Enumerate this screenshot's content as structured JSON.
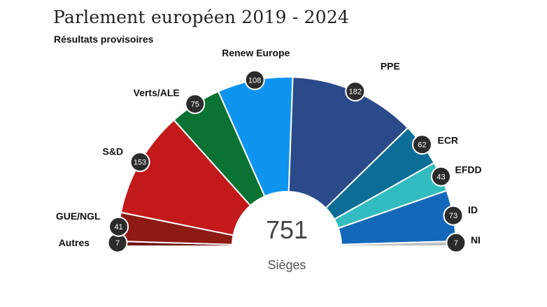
{
  "header": {
    "title": "Parlement européen 2019 - 2024",
    "subtitle": "Résultats provisoires"
  },
  "chart_data": {
    "type": "parliament",
    "title": "Parlement européen 2019 - 2024",
    "subtitle": "Résultats provisoires",
    "total": 751,
    "total_label": "Sièges",
    "series": [
      {
        "name": "Autres",
        "seats": 7,
        "color": "#6e1412"
      },
      {
        "name": "GUE/NGL",
        "seats": 41,
        "color": "#8e1a14"
      },
      {
        "name": "S&D",
        "seats": 153,
        "color": "#c3191b"
      },
      {
        "name": "Verts/ALE",
        "seats": 75,
        "color": "#0a7232"
      },
      {
        "name": "Renew Europe",
        "seats": 108,
        "color": "#0f94f0"
      },
      {
        "name": "PPE",
        "seats": 182,
        "color": "#2a4a8a"
      },
      {
        "name": "ECR",
        "seats": 62,
        "color": "#0c6e96"
      },
      {
        "name": "EFDD",
        "seats": 43,
        "color": "#32bcc0"
      },
      {
        "name": "ID",
        "seats": 73,
        "color": "#1468ba"
      },
      {
        "name": "NI",
        "seats": 7,
        "color": "#c0c0c0"
      }
    ]
  }
}
